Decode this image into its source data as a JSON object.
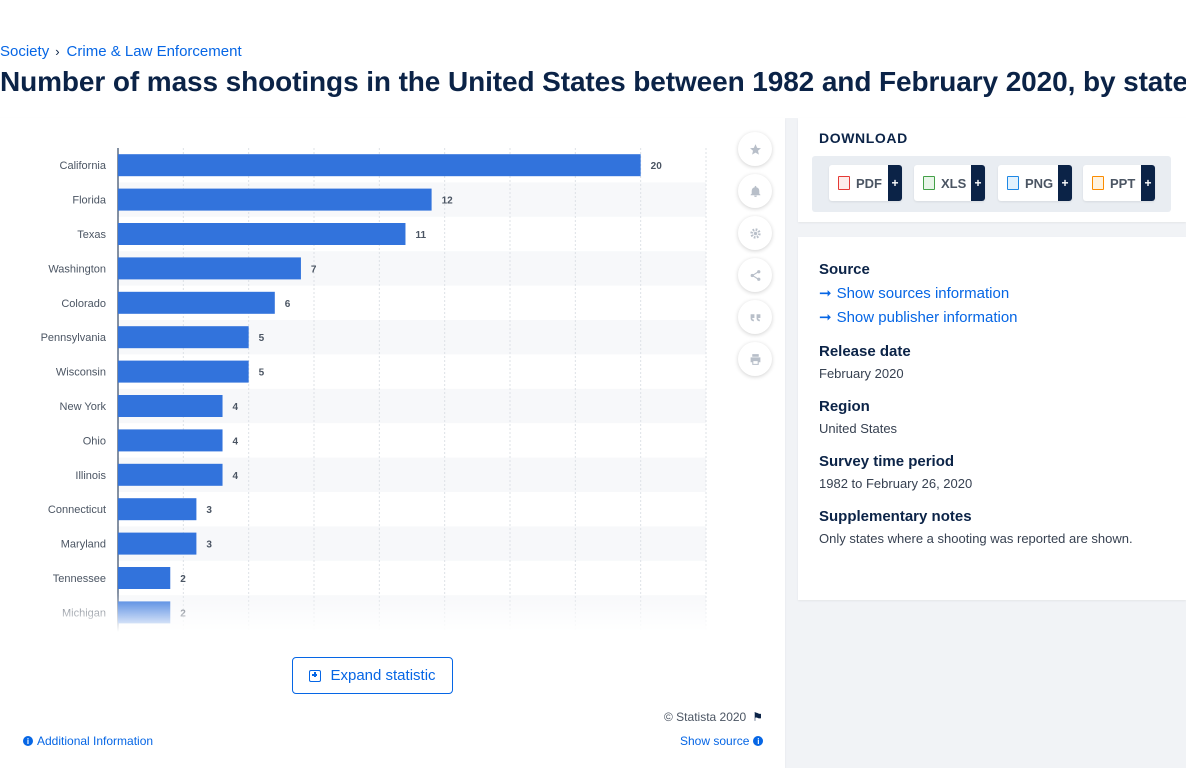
{
  "breadcrumb": {
    "items": [
      "Society",
      "Crime & Law Enforcement"
    ],
    "separator": "›"
  },
  "page_title": "Number of mass shootings in the United States between 1982 and February 2020, by state",
  "chart_data": {
    "type": "bar",
    "orientation": "horizontal",
    "categories": [
      "California",
      "Florida",
      "Texas",
      "Washington",
      "Colorado",
      "Pennsylvania",
      "Wisconsin",
      "New York",
      "Ohio",
      "Illinois",
      "Connecticut",
      "Maryland",
      "Tennessee",
      "Michigan"
    ],
    "values": [
      20,
      12,
      11,
      7,
      6,
      5,
      5,
      4,
      4,
      4,
      3,
      3,
      2,
      2
    ],
    "bar_color": "#3273dc",
    "xlim": [
      0,
      22.5
    ],
    "grid": true,
    "title": "",
    "xlabel": "",
    "ylabel": "",
    "note": "list truncated (fades at bottom)"
  },
  "chart_tools": {
    "icons": [
      "star-icon",
      "bell-icon",
      "gear-icon",
      "share-icon",
      "quote-icon",
      "print-icon"
    ]
  },
  "expand_label": "Expand statistic",
  "copyright": "© Statista 2020",
  "additional_info": "Additional Information",
  "show_source": "Show source",
  "download": {
    "title": "DOWNLOAD",
    "buttons": [
      {
        "label": "PDF",
        "color": "#e53935"
      },
      {
        "label": "XLS",
        "color": "#43a047"
      },
      {
        "label": "PNG",
        "color": "#1e88e5"
      },
      {
        "label": "PPT",
        "color": "#fb8c00"
      }
    ],
    "plus": "+"
  },
  "info": {
    "source_label": "Source",
    "show_sources": "Show sources information",
    "show_publisher": "Show publisher information",
    "release_label": "Release date",
    "release_value": "February 2020",
    "region_label": "Region",
    "region_value": "United States",
    "period_label": "Survey time period",
    "period_value": "1982 to February 26, 2020",
    "notes_label": "Supplementary notes",
    "notes_value": "Only states where a shooting was reported are shown."
  }
}
